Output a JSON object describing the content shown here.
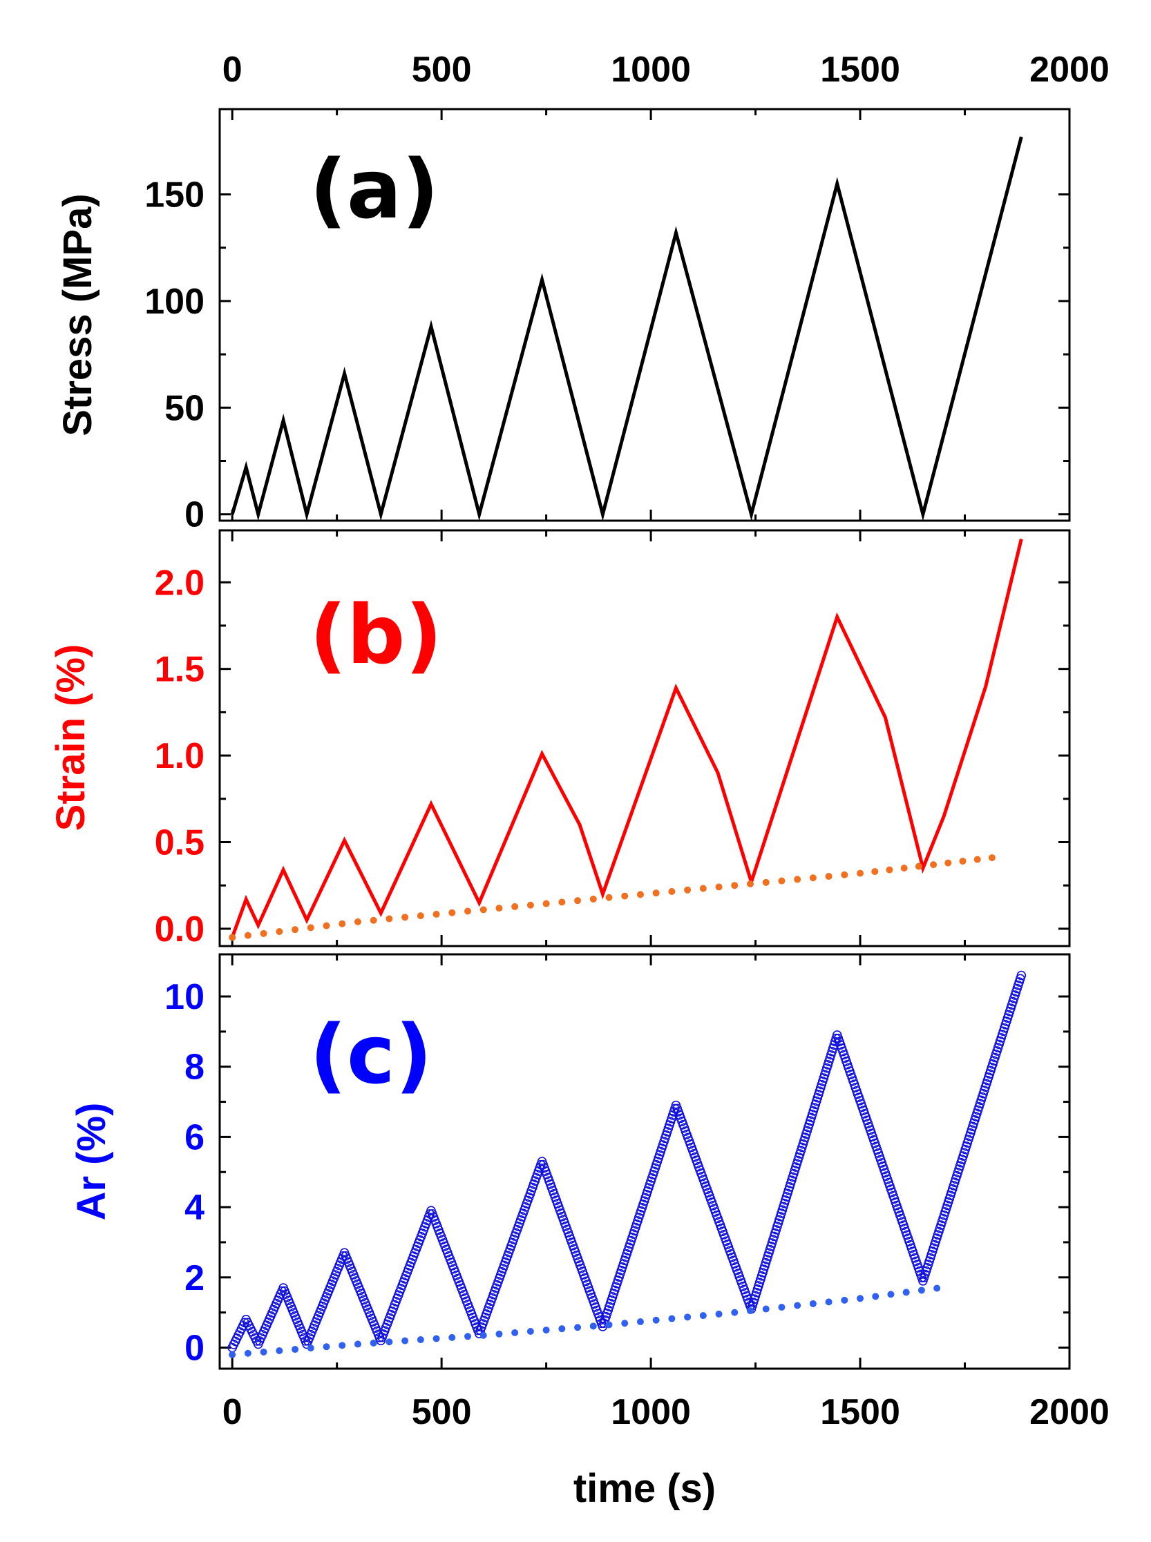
{
  "chart_data": [
    {
      "type": "line",
      "panel_label": "(a)",
      "title": "",
      "xlabel": "",
      "ylabel": "Stress (MPa)",
      "color": "#000000",
      "xlim": [
        -30,
        2000
      ],
      "ylim": [
        -3,
        190
      ],
      "x_ticks": [
        0,
        500,
        1000,
        1500,
        2000
      ],
      "x_tick_labels": [
        "0",
        "500",
        "1000",
        "1500",
        "2000"
      ],
      "y_ticks": [
        0,
        50,
        100,
        150
      ],
      "y_tick_labels": [
        "0",
        "50",
        "100",
        "150"
      ],
      "series": [
        {
          "name": "Stress",
          "style": "solid",
          "x": [
            0,
            33,
            62,
            122,
            178,
            268,
            355,
            475,
            590,
            740,
            885,
            1060,
            1240,
            1445,
            1650,
            1885
          ],
          "y": [
            0,
            22,
            0,
            44,
            0,
            66,
            0,
            88,
            0,
            110,
            0,
            132,
            0,
            155,
            0,
            177
          ]
        }
      ]
    },
    {
      "type": "line",
      "panel_label": "(b)",
      "title": "",
      "xlabel": "",
      "ylabel": "Strain (%)",
      "color": "#ff0000",
      "xlim": [
        -30,
        2000
      ],
      "ylim": [
        -0.1,
        2.3
      ],
      "y_ticks": [
        0.0,
        0.5,
        1.0,
        1.5,
        2.0
      ],
      "y_tick_labels": [
        "0.0",
        "0.5",
        "1.0",
        "1.5",
        "2.0"
      ],
      "series": [
        {
          "name": "Strain",
          "style": "solid",
          "color": "#ff0000",
          "x": [
            0,
            33,
            62,
            122,
            178,
            268,
            355,
            475,
            590,
            740,
            830,
            885,
            1060,
            1160,
            1240,
            1445,
            1560,
            1650,
            1700,
            1800,
            1885
          ],
          "y": [
            -0.05,
            0.17,
            0.02,
            0.34,
            0.05,
            0.51,
            0.09,
            0.72,
            0.15,
            1.01,
            0.6,
            0.2,
            1.39,
            0.9,
            0.27,
            1.8,
            1.22,
            0.35,
            0.65,
            1.4,
            2.25
          ]
        },
        {
          "name": "Strain baseline",
          "style": "dotted",
          "color": "#f07020",
          "x": [
            0,
            300,
            600,
            900,
            1200,
            1500,
            1850
          ],
          "y": [
            -0.05,
            0.04,
            0.11,
            0.18,
            0.25,
            0.32,
            0.42
          ]
        }
      ]
    },
    {
      "type": "scatter",
      "panel_label": "(c)",
      "title": "",
      "xlabel": "time (s)",
      "ylabel": "Ar (%)",
      "color": "#0000ff",
      "xlim": [
        -30,
        2000
      ],
      "ylim": [
        -0.6,
        11.2
      ],
      "x_ticks": [
        0,
        500,
        1000,
        1500,
        2000
      ],
      "x_tick_labels": [
        "0",
        "500",
        "1000",
        "1500",
        "2000"
      ],
      "y_ticks": [
        0,
        2,
        4,
        6,
        8,
        10
      ],
      "y_tick_labels": [
        "0",
        "2",
        "4",
        "6",
        "8",
        "10"
      ],
      "series": [
        {
          "name": "Ar",
          "style": "open-circles",
          "color": "#1010e0",
          "x": [
            0,
            33,
            62,
            122,
            178,
            268,
            355,
            475,
            590,
            740,
            885,
            1060,
            1240,
            1445,
            1650,
            1885
          ],
          "y": [
            0,
            0.8,
            0.1,
            1.7,
            0.1,
            2.7,
            0.2,
            3.9,
            0.4,
            5.3,
            0.6,
            6.9,
            1.1,
            8.9,
            1.9,
            10.6
          ]
        },
        {
          "name": "Ar baseline",
          "style": "dotted",
          "color": "#3060f0",
          "x": [
            0,
            300,
            600,
            900,
            1200,
            1500,
            1720
          ],
          "y": [
            -0.2,
            0.1,
            0.35,
            0.65,
            1.0,
            1.4,
            1.75
          ]
        }
      ]
    }
  ]
}
